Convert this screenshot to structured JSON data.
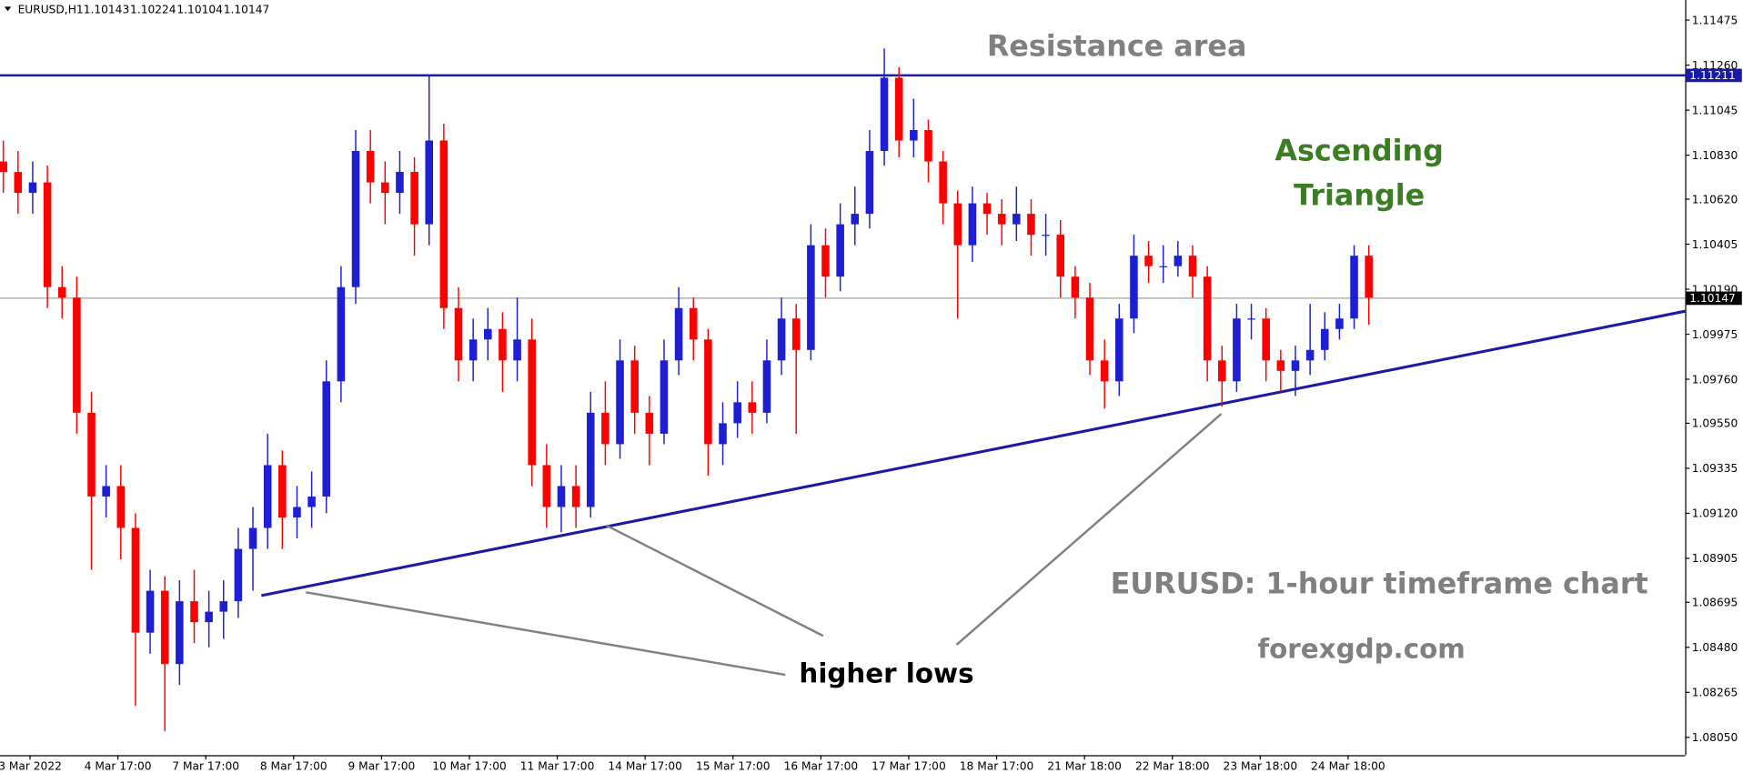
{
  "chart_data": {
    "type": "candlestick",
    "header": {
      "symbol": "EURUSD,H1",
      "values": [
        1.10143,
        1.10224,
        1.10104,
        1.10147
      ]
    },
    "time_labels": [
      "3 Mar 2022",
      "4 Mar 17:00",
      "7 Mar 17:00",
      "8 Mar 17:00",
      "9 Mar 17:00",
      "10 Mar 17:00",
      "11 Mar 17:00",
      "14 Mar 17:00",
      "15 Mar 17:00",
      "16 Mar 17:00",
      "17 Mar 17:00",
      "18 Mar 17:00",
      "21 Mar 18:00",
      "22 Mar 18:00",
      "23 Mar 18:00",
      "24 Mar 18:00"
    ],
    "open": [
      1.108,
      1.1075,
      1.1065,
      1.107,
      1.102,
      1.1015,
      1.096,
      1.092,
      1.0925,
      1.0905,
      1.0855,
      1.0875,
      1.084,
      1.087,
      1.086,
      1.0865,
      1.087,
      1.0895,
      1.0905,
      1.0935,
      1.091,
      1.0915,
      1.092,
      1.0975,
      1.102,
      1.1085,
      1.107,
      1.1065,
      1.1075,
      1.105,
      1.109,
      1.101,
      1.0985,
      1.0995,
      1.1,
      1.0985,
      1.0995,
      1.0935,
      1.0915,
      1.0925,
      1.0915,
      1.096,
      1.0945,
      1.0985,
      1.096,
      1.095,
      1.0985,
      1.101,
      1.0995,
      1.0945,
      1.0955,
      1.0965,
      1.096,
      1.0985,
      1.1005,
      1.099,
      1.104,
      1.1025,
      1.105,
      1.1055,
      1.1085,
      1.112,
      1.109,
      1.1095,
      1.108,
      1.106,
      1.104,
      1.106,
      1.1055,
      1.105,
      1.1055,
      1.1045,
      1.1045,
      1.1025,
      1.1015,
      1.0985,
      1.0975,
      1.1005,
      1.1035,
      1.103,
      1.103,
      1.1035,
      1.1025,
      1.0985,
      1.0975,
      1.1005,
      1.1005,
      1.0985,
      1.098,
      1.0985,
      1.099,
      1.1,
      1.1005,
      1.1035
    ],
    "high": [
      1.109,
      1.1085,
      1.108,
      1.1078,
      1.103,
      1.1025,
      1.097,
      1.0935,
      1.0935,
      1.0912,
      1.0885,
      1.0882,
      1.088,
      1.0885,
      1.0875,
      1.088,
      1.0905,
      1.0915,
      1.095,
      1.0942,
      1.0925,
      1.0932,
      1.0985,
      1.103,
      1.1095,
      1.1095,
      1.108,
      1.1085,
      1.1082,
      1.1121,
      1.1098,
      1.102,
      1.1005,
      1.101,
      1.1008,
      1.1015,
      1.1005,
      1.0945,
      1.0935,
      1.0935,
      1.097,
      1.0975,
      1.0995,
      1.0992,
      1.0968,
      1.0995,
      1.102,
      1.1015,
      1.1,
      1.0965,
      1.0975,
      1.0975,
      1.0995,
      1.1015,
      1.1012,
      1.105,
      1.1048,
      1.106,
      1.1068,
      1.1095,
      1.1134,
      1.1125,
      1.111,
      1.11,
      1.1085,
      1.1066,
      1.1068,
      1.1065,
      1.1062,
      1.1068,
      1.1062,
      1.1055,
      1.1052,
      1.103,
      1.1022,
      1.0995,
      1.1012,
      1.1045,
      1.1042,
      1.104,
      1.1042,
      1.104,
      1.103,
      1.0992,
      1.1012,
      1.1012,
      1.101,
      1.099,
      1.0992,
      1.1012,
      1.1008,
      1.1012,
      1.104,
      1.104
    ],
    "low": [
      1.1065,
      1.1055,
      1.1055,
      1.101,
      1.1005,
      1.095,
      1.0885,
      1.091,
      1.089,
      1.082,
      1.0845,
      1.0808,
      1.083,
      1.085,
      1.0848,
      1.0852,
      1.0862,
      1.0875,
      1.0895,
      1.0895,
      1.09,
      1.0905,
      1.0912,
      1.0965,
      1.1012,
      1.106,
      1.105,
      1.1055,
      1.1035,
      1.104,
      1.1,
      1.0975,
      1.0975,
      1.0985,
      1.097,
      1.0975,
      1.0925,
      1.0905,
      1.0903,
      1.0905,
      1.091,
      1.0935,
      1.0938,
      1.095,
      1.0935,
      1.0945,
      1.0978,
      1.0985,
      1.093,
      1.0935,
      1.0948,
      1.095,
      1.0955,
      1.0978,
      1.095,
      1.0985,
      1.1015,
      1.1018,
      1.104,
      1.1048,
      1.1078,
      1.1082,
      1.1082,
      1.107,
      1.105,
      1.1005,
      1.1032,
      1.1045,
      1.104,
      1.1042,
      1.1035,
      1.1035,
      1.1015,
      1.1005,
      1.0978,
      1.0962,
      1.0968,
      1.0998,
      1.1022,
      1.1022,
      1.1025,
      1.1015,
      1.0975,
      1.0963,
      1.097,
      1.0995,
      1.0975,
      1.097,
      1.0968,
      1.0978,
      1.0985,
      1.0995,
      1.1,
      1.1002
    ],
    "close": [
      1.1075,
      1.1065,
      1.107,
      1.102,
      1.1015,
      1.096,
      1.092,
      1.0925,
      1.0905,
      1.0855,
      1.0875,
      1.084,
      1.087,
      1.086,
      1.0865,
      1.087,
      1.0895,
      1.0905,
      1.0935,
      1.091,
      1.0915,
      1.092,
      1.0975,
      1.102,
      1.1085,
      1.107,
      1.1065,
      1.1075,
      1.105,
      1.109,
      1.101,
      1.0985,
      1.0995,
      1.1,
      1.0985,
      1.0995,
      1.0935,
      1.0915,
      1.0925,
      1.0915,
      1.096,
      1.0945,
      1.0985,
      1.096,
      1.095,
      1.0985,
      1.101,
      1.0995,
      1.0945,
      1.0955,
      1.0965,
      1.096,
      1.0985,
      1.1005,
      1.099,
      1.104,
      1.1025,
      1.105,
      1.1055,
      1.1085,
      1.112,
      1.109,
      1.1095,
      1.108,
      1.106,
      1.104,
      1.106,
      1.1055,
      1.105,
      1.1055,
      1.1045,
      1.1045,
      1.1025,
      1.1015,
      1.0985,
      1.0975,
      1.1005,
      1.1035,
      1.103,
      1.103,
      1.1035,
      1.1025,
      1.0985,
      1.0975,
      1.1005,
      1.1005,
      1.0985,
      1.098,
      1.0985,
      1.099,
      1.1,
      1.1005,
      1.1035,
      1.1015
    ],
    "up_color": "#1e1ed2",
    "down_color": "#ff0000",
    "ylim": [
      1.07965,
      1.11571
    ],
    "yticks": [
      1.11475,
      {
        "value": 1.1126,
        "label": "1.11260"
      },
      1.11045,
      {
        "value": 1.1083,
        "label": "1.10830"
      },
      {
        "value": 1.1062,
        "label": "1.10620"
      },
      1.10405,
      {
        "value": 1.1019,
        "label": "1.10190"
      },
      1.09975,
      {
        "value": 1.0976,
        "label": "1.09760"
      },
      {
        "value": 1.0955,
        "label": "1.09550"
      },
      1.09335,
      {
        "value": 1.0912,
        "label": "1.09120"
      },
      1.08905,
      1.08695,
      {
        "value": 1.0848,
        "label": "1.08480"
      },
      1.08265,
      {
        "value": 1.0805,
        "label": "1.08050"
      }
    ],
    "resistance": 1.11211,
    "current_price": 1.10147,
    "trendline": [
      1.08727,
      1.10085
    ],
    "line_color": "#1a1aaa",
    "annotations": {
      "resistance": "Resistance area",
      "pattern": [
        "Ascending",
        "Triangle"
      ],
      "subtitle": "EURUSD: 1-hour timeframe chart",
      "source": "forexgdp.com",
      "lows": "higher lows"
    }
  }
}
